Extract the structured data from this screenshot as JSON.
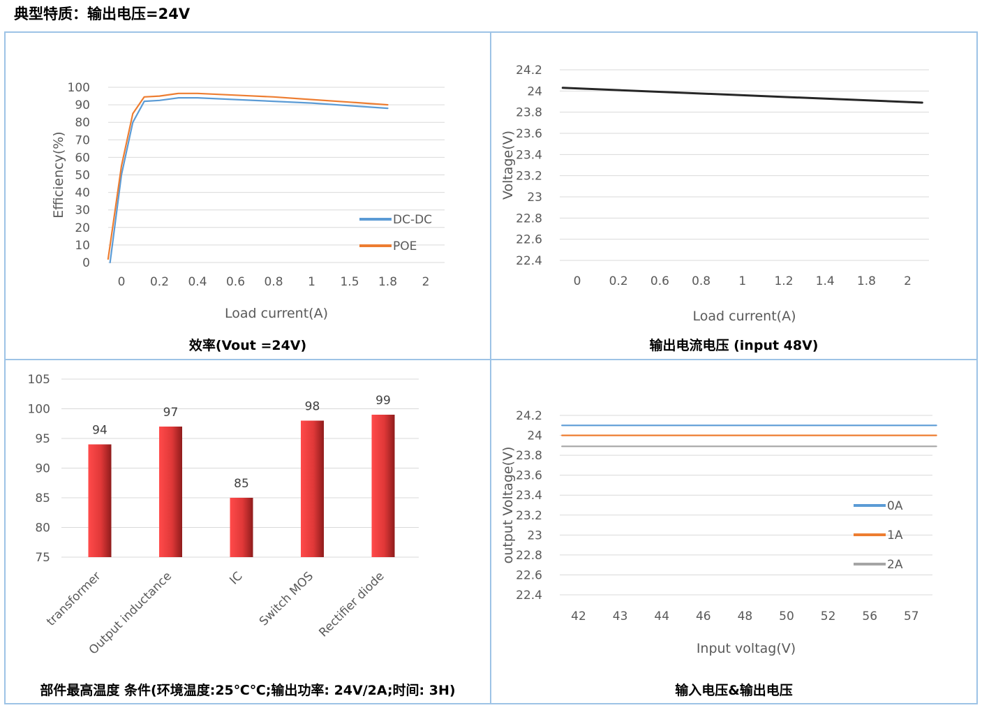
{
  "page_title": "典型特质：输出电压=24V",
  "captions": {
    "efficiency": "效率(Vout =24V)",
    "load_reg": "输出电流电压  (input 48V)",
    "temperature": "部件最高温度  条件(环境温度:25℃℃;输出功率: 24V/2A;时间: 3H)",
    "line_reg": "输入电压&输出电压"
  },
  "chart_data": [
    {
      "id": "efficiency",
      "type": "line",
      "xlabel": "Load current(A)",
      "ylabel": "Efficiency(%)",
      "categories": [
        "0",
        "0.2",
        "0.4",
        "0.6",
        "0.8",
        "1",
        "1.5",
        "1.8",
        "2"
      ],
      "ylim": [
        0,
        100
      ],
      "yticks": [
        0,
        10,
        20,
        30,
        40,
        50,
        60,
        70,
        80,
        90,
        100
      ],
      "grid": true,
      "legend": "right",
      "series": [
        {
          "name": "DC-DC",
          "color": "#5b9bd5",
          "points": [
            [
              -0.3,
              0
            ],
            [
              0.0,
              50
            ],
            [
              0.3,
              80
            ],
            [
              0.6,
              92
            ],
            [
              1.0,
              92.5
            ],
            [
              1.5,
              94
            ],
            [
              2.0,
              94
            ],
            [
              3.0,
              93
            ],
            [
              4.0,
              92
            ],
            [
              5.0,
              91
            ],
            [
              6.0,
              89.5
            ],
            [
              7.0,
              88
            ]
          ]
        },
        {
          "name": "POE",
          "color": "#ed7d31",
          "points": [
            [
              -0.35,
              2
            ],
            [
              0.0,
              55
            ],
            [
              0.3,
              85
            ],
            [
              0.6,
              94.5
            ],
            [
              1.0,
              95
            ],
            [
              1.5,
              96.5
            ],
            [
              2.0,
              96.5
            ],
            [
              3.0,
              95.5
            ],
            [
              4.0,
              94.5
            ],
            [
              5.0,
              93
            ],
            [
              6.0,
              91.5
            ],
            [
              7.0,
              90
            ]
          ]
        }
      ]
    },
    {
      "id": "load_reg",
      "type": "line",
      "xlabel": "Load current(A)",
      "ylabel": "Voltage(V)",
      "categories": [
        "0",
        "0.2",
        "0.6",
        "0.8",
        "1",
        "1.2",
        "1.4",
        "1.8",
        "2"
      ],
      "ylim": [
        22.4,
        24.2
      ],
      "yticks": [
        "22.4",
        "22.6",
        "22.8",
        "23",
        "23.2",
        "23.4",
        "23.6",
        "23.8",
        "24",
        "24.2"
      ],
      "grid": true,
      "series": [
        {
          "color": "#262626",
          "points": [
            [
              -0.35,
              24.03
            ],
            [
              8.35,
              23.89
            ]
          ]
        }
      ]
    },
    {
      "id": "temperature",
      "type": "bar",
      "categories": [
        "transformer",
        "Output inductance",
        "IC",
        "Switch MOS",
        "Rectifier diode"
      ],
      "values": [
        94,
        97,
        85,
        98,
        99
      ],
      "ylim": [
        75,
        105
      ],
      "yticks": [
        75,
        80,
        85,
        90,
        95,
        100,
        105
      ],
      "grid": true,
      "bar_color": "#e84040"
    },
    {
      "id": "line_reg",
      "type": "line",
      "xlabel": "Input voltag(V)",
      "ylabel": "output Voltage(V)",
      "categories": [
        "42",
        "43",
        "44",
        "46",
        "48",
        "50",
        "52",
        "56",
        "57"
      ],
      "ylim": [
        22.4,
        24.2
      ],
      "yticks": [
        "22.4",
        "22.6",
        "22.8",
        "23",
        "23.2",
        "23.4",
        "23.6",
        "23.8",
        "24",
        "24.2"
      ],
      "grid": true,
      "legend": "right",
      "series": [
        {
          "name": "0A",
          "color": "#5b9bd5",
          "points": [
            [
              -0.4,
              24.1
            ],
            [
              8.6,
              24.1
            ]
          ]
        },
        {
          "name": "1A",
          "color": "#ed7d31",
          "points": [
            [
              -0.4,
              24.0
            ],
            [
              8.6,
              24.0
            ]
          ]
        },
        {
          "name": "2A",
          "color": "#a5a5a5",
          "points": [
            [
              -0.4,
              23.89
            ],
            [
              8.6,
              23.89
            ]
          ]
        }
      ]
    }
  ]
}
